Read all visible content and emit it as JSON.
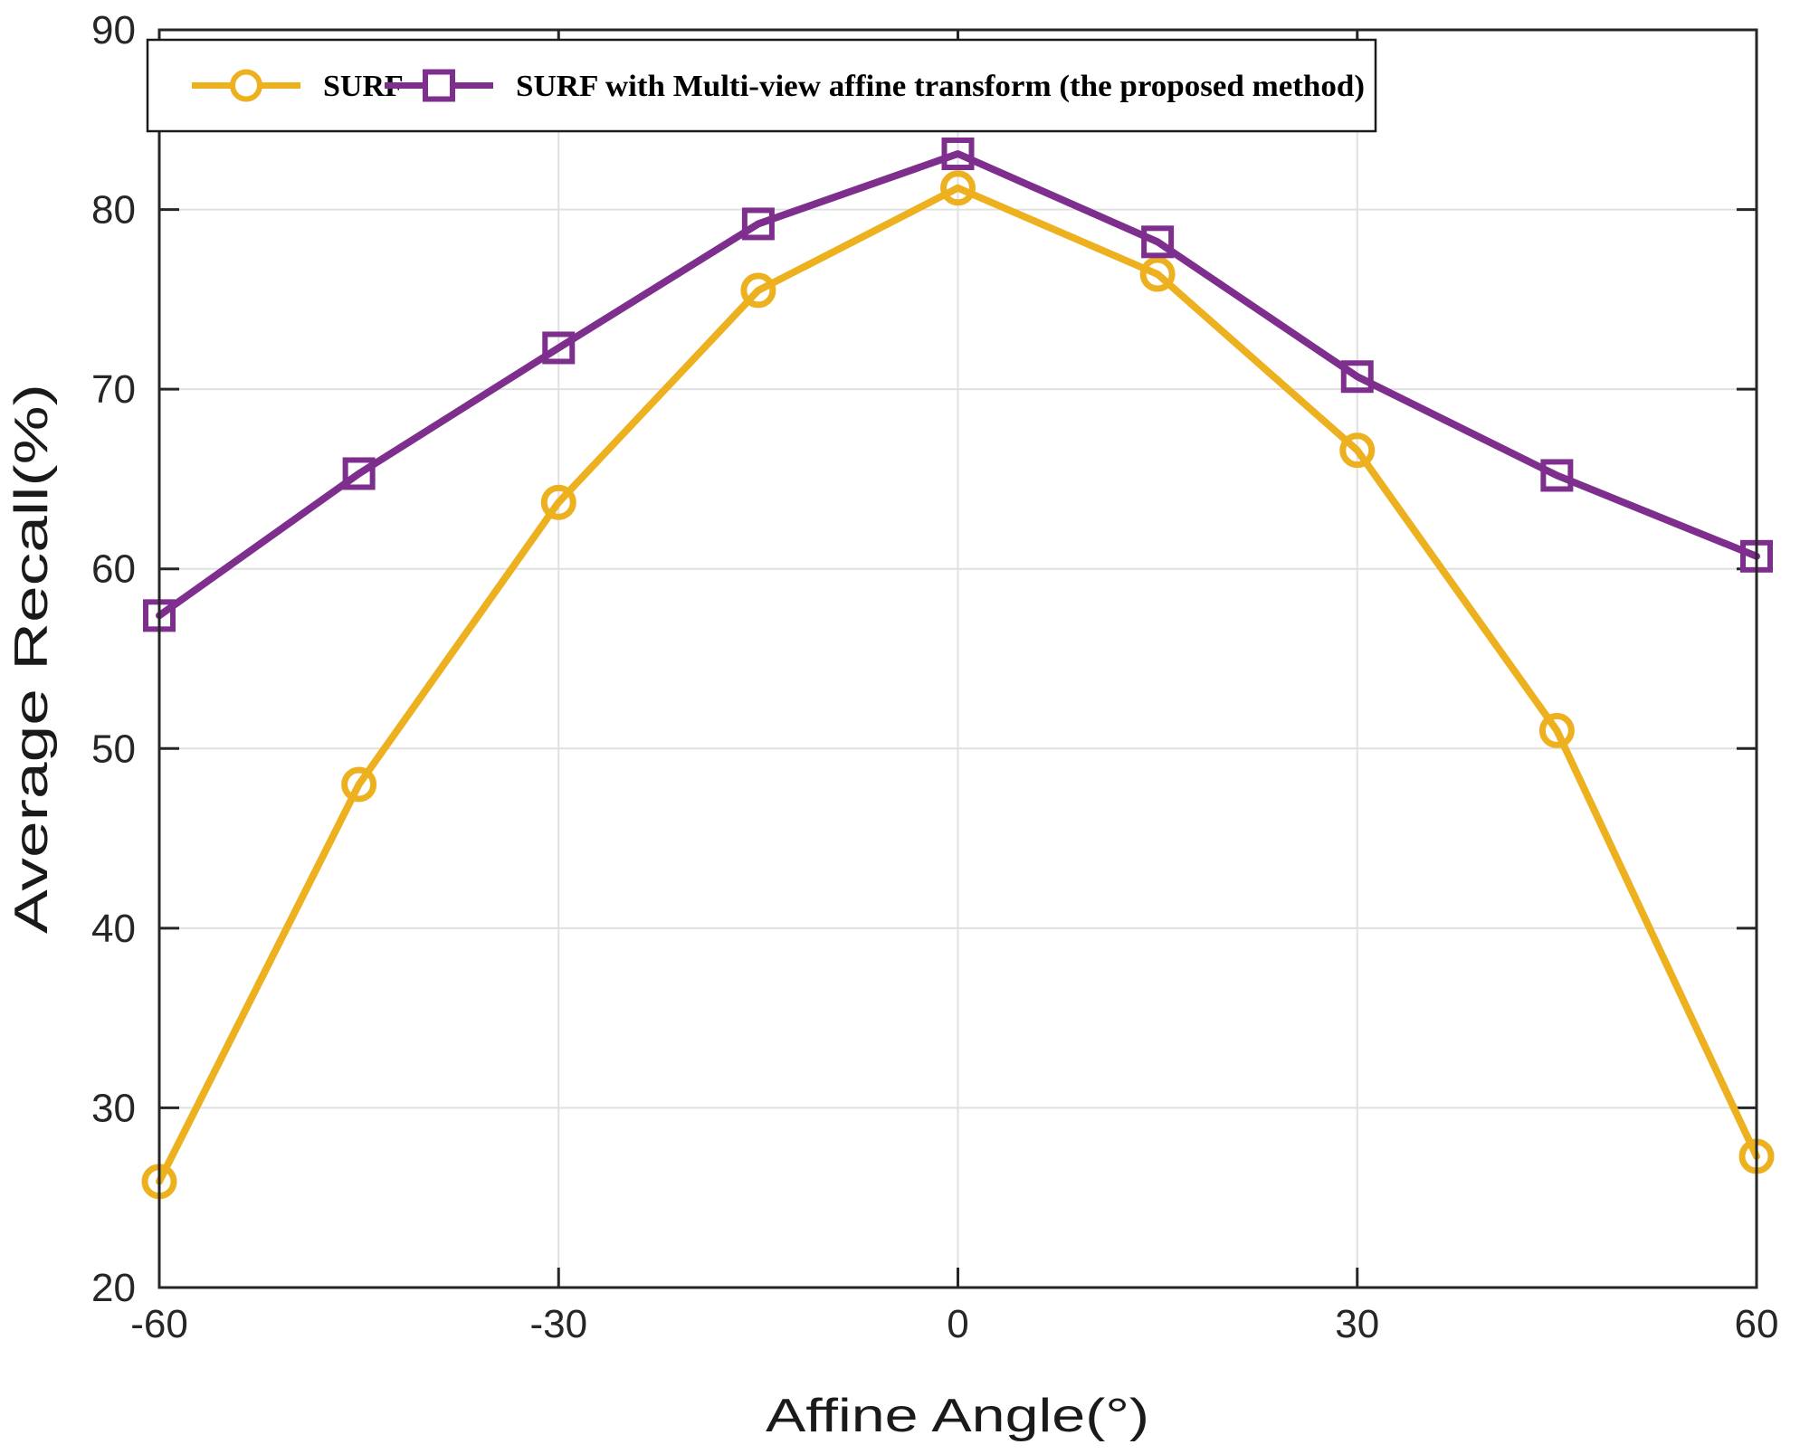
{
  "chart_data": {
    "type": "line",
    "title": "",
    "xlabel": "Affine Angle(°)",
    "ylabel": "Average Recall(%)",
    "x": [
      -60,
      -45,
      -30,
      -15,
      0,
      15,
      30,
      45,
      60
    ],
    "xlim": [
      -60,
      60
    ],
    "ylim": [
      20,
      90
    ],
    "xticks": [
      -60,
      -30,
      0,
      30,
      60
    ],
    "xtick_labels": [
      "-60",
      "-30",
      "0",
      "30",
      "60"
    ],
    "yticks": [
      20,
      30,
      40,
      50,
      60,
      70,
      80,
      90
    ],
    "ytick_labels": [
      "20",
      "30",
      "40",
      "50",
      "60",
      "70",
      "80",
      "90"
    ],
    "grid": true,
    "legend_position": "top-left-inside",
    "series": [
      {
        "name": "SURF",
        "color": "#EDB120",
        "marker": "circle",
        "values": [
          25.9,
          48.0,
          63.7,
          75.5,
          81.2,
          76.4,
          66.6,
          51.0,
          27.3
        ]
      },
      {
        "name": "SURF with Multi-view affine transform (the proposed method)",
        "color": "#7E2F8E",
        "marker": "square",
        "values": [
          57.4,
          65.3,
          72.3,
          79.2,
          83.1,
          78.2,
          70.7,
          65.2,
          60.7
        ]
      }
    ]
  },
  "style": {
    "axis_color": "#262626",
    "grid_color": "#E0E0E0",
    "tick_label_color": "#262626",
    "legend_border_color": "#1a1a1a",
    "legend_background": "#ffffff",
    "background": "#ffffff"
  }
}
